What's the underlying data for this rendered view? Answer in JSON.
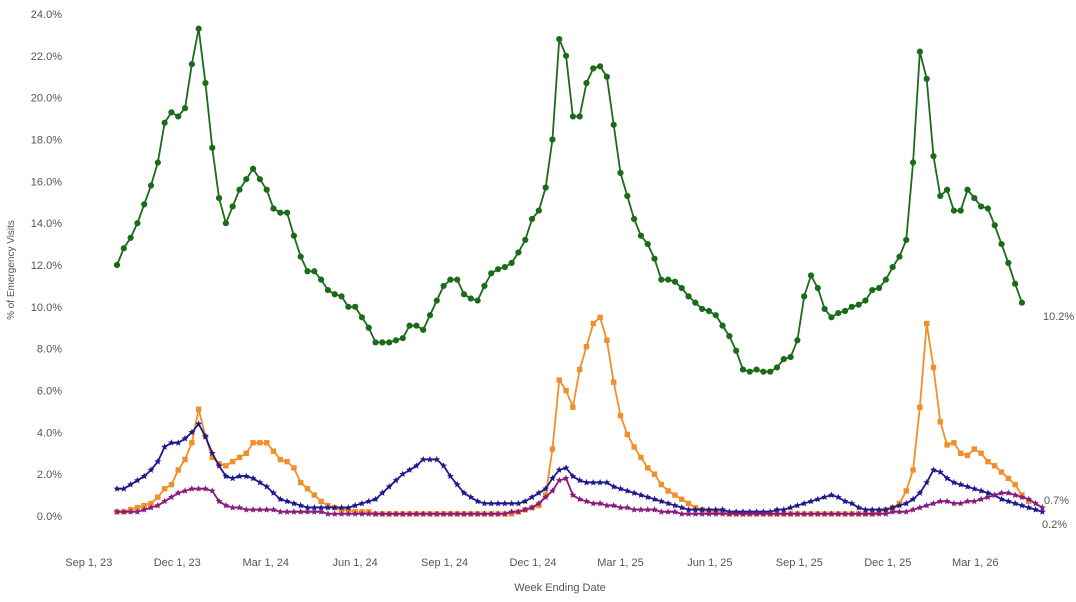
{
  "chart_data": {
    "type": "line",
    "title": "",
    "xlabel": "Week Ending Date",
    "ylabel": "% of Emergency Visits",
    "ylim": [
      0,
      24
    ],
    "y_ticks": [
      "0.0%",
      "2.0%",
      "4.0%",
      "6.0%",
      "8.0%",
      "10.0%",
      "12.0%",
      "14.0%",
      "16.0%",
      "18.0%",
      "20.0%",
      "22.0%",
      "24.0%"
    ],
    "x_ticks": [
      "Sep 1, 23",
      "Dec 1, 23",
      "Mar 1, 24",
      "Jun 1, 24",
      "Sep 1, 24",
      "Dec 1, 24",
      "Mar 1, 25",
      "Jun 1, 25",
      "Sep 1, 25",
      "Dec 1, 25",
      "Mar 1, 26"
    ],
    "x_start_week": "2023-09-30",
    "grid": false,
    "legend": "none",
    "end_labels": [
      "10.2%",
      "0.7%",
      "0.2%"
    ],
    "series": [
      {
        "color": "#1a6b1a",
        "marker": "circle",
        "values": [
          12.0,
          12.8,
          13.3,
          14.0,
          14.9,
          15.8,
          16.9,
          18.8,
          19.3,
          19.1,
          19.5,
          21.6,
          23.3,
          20.7,
          17.6,
          15.2,
          14.0,
          14.8,
          15.6,
          16.1,
          16.6,
          16.1,
          15.6,
          14.7,
          14.5,
          14.5,
          13.4,
          12.4,
          11.7,
          11.7,
          11.3,
          10.8,
          10.6,
          10.5,
          10.0,
          10.0,
          9.5,
          9.0,
          8.3,
          8.3,
          8.3,
          8.4,
          8.5,
          9.1,
          9.1,
          8.9,
          9.6,
          10.3,
          11.0,
          11.3,
          11.3,
          10.6,
          10.4,
          10.3,
          11.0,
          11.6,
          11.8,
          11.9,
          12.1,
          12.6,
          13.2,
          14.2,
          14.6,
          15.7,
          18.0,
          22.8,
          22.0,
          19.1,
          19.1,
          20.7,
          21.4,
          21.5,
          21.0,
          18.7,
          16.4,
          15.3,
          14.2,
          13.4,
          13.0,
          12.3,
          11.3,
          11.3,
          11.2,
          10.9,
          10.5,
          10.2,
          9.9,
          9.8,
          9.6,
          9.1,
          8.6,
          7.9,
          7.0,
          6.9,
          7.0,
          6.9,
          6.9,
          7.1,
          7.5,
          7.6,
          8.4,
          10.5,
          11.5,
          10.9,
          9.9,
          9.5,
          9.7,
          9.8,
          10.0,
          10.1,
          10.3,
          10.8,
          10.9,
          11.3,
          11.9,
          12.4,
          13.2,
          16.9,
          22.2,
          20.9,
          17.2,
          15.3,
          15.6,
          14.6,
          14.6,
          15.6,
          15.2,
          14.8,
          14.7,
          13.9,
          13.0,
          12.1,
          11.1,
          10.2
        ]
      },
      {
        "color": "#f28e2b",
        "marker": "square",
        "values": [
          0.2,
          0.2,
          0.3,
          0.4,
          0.5,
          0.6,
          0.9,
          1.3,
          1.5,
          2.2,
          2.7,
          3.5,
          5.1,
          3.8,
          2.8,
          2.5,
          2.4,
          2.6,
          2.8,
          3.0,
          3.5,
          3.5,
          3.5,
          3.1,
          2.7,
          2.6,
          2.3,
          1.6,
          1.3,
          1.0,
          0.7,
          0.5,
          0.4,
          0.3,
          0.3,
          0.2,
          0.2,
          0.2,
          0.1,
          0.1,
          0.1,
          0.1,
          0.1,
          0.1,
          0.1,
          0.1,
          0.1,
          0.1,
          0.1,
          0.1,
          0.1,
          0.1,
          0.1,
          0.1,
          0.1,
          0.1,
          0.1,
          0.1,
          0.1,
          0.2,
          0.3,
          0.4,
          0.5,
          1.0,
          3.2,
          6.5,
          6.0,
          5.2,
          7.0,
          8.1,
          9.2,
          9.5,
          8.4,
          6.4,
          4.8,
          3.9,
          3.3,
          2.8,
          2.3,
          2.0,
          1.5,
          1.2,
          1.0,
          0.8,
          0.6,
          0.4,
          0.3,
          0.2,
          0.2,
          0.2,
          0.1,
          0.1,
          0.1,
          0.1,
          0.1,
          0.1,
          0.1,
          0.1,
          0.1,
          0.1,
          0.1,
          0.1,
          0.1,
          0.1,
          0.1,
          0.1,
          0.1,
          0.1,
          0.1,
          0.1,
          0.1,
          0.1,
          0.2,
          0.3,
          0.4,
          0.6,
          1.2,
          2.2,
          5.2,
          9.2,
          7.1,
          4.5,
          3.4,
          3.5,
          3.0,
          2.9,
          3.2,
          3.0,
          2.6,
          2.4,
          2.1,
          1.8,
          1.5,
          1.0,
          0.7
        ]
      },
      {
        "color": "#1f1a8c",
        "marker": "star",
        "values": [
          1.3,
          1.3,
          1.5,
          1.7,
          1.9,
          2.2,
          2.6,
          3.3,
          3.5,
          3.5,
          3.7,
          4.0,
          4.4,
          3.8,
          3.0,
          2.4,
          1.9,
          1.8,
          1.9,
          1.9,
          1.8,
          1.6,
          1.4,
          1.1,
          0.8,
          0.7,
          0.6,
          0.5,
          0.4,
          0.4,
          0.4,
          0.4,
          0.4,
          0.4,
          0.4,
          0.5,
          0.6,
          0.7,
          0.8,
          1.1,
          1.4,
          1.7,
          2.0,
          2.2,
          2.4,
          2.7,
          2.7,
          2.7,
          2.4,
          1.9,
          1.5,
          1.1,
          0.9,
          0.7,
          0.6,
          0.6,
          0.6,
          0.6,
          0.6,
          0.6,
          0.7,
          0.9,
          1.1,
          1.3,
          1.8,
          2.2,
          2.3,
          1.9,
          1.7,
          1.6,
          1.6,
          1.6,
          1.6,
          1.4,
          1.3,
          1.2,
          1.1,
          1.0,
          0.9,
          0.8,
          0.7,
          0.6,
          0.5,
          0.4,
          0.3,
          0.3,
          0.3,
          0.3,
          0.3,
          0.3,
          0.2,
          0.2,
          0.2,
          0.2,
          0.2,
          0.2,
          0.2,
          0.3,
          0.3,
          0.4,
          0.5,
          0.6,
          0.7,
          0.8,
          0.9,
          1.0,
          0.9,
          0.7,
          0.6,
          0.4,
          0.3,
          0.3,
          0.3,
          0.3,
          0.4,
          0.5,
          0.6,
          0.8,
          1.1,
          1.6,
          2.2,
          2.1,
          1.8,
          1.6,
          1.5,
          1.4,
          1.3,
          1.2,
          1.1,
          1.0,
          0.8,
          0.7,
          0.6,
          0.5,
          0.4,
          0.3,
          0.2
        ]
      },
      {
        "color": "#8a1a7e",
        "marker": "star",
        "values": [
          0.2,
          0.2,
          0.2,
          0.2,
          0.3,
          0.4,
          0.5,
          0.7,
          0.9,
          1.1,
          1.2,
          1.3,
          1.3,
          1.3,
          1.2,
          0.7,
          0.5,
          0.4,
          0.4,
          0.3,
          0.3,
          0.3,
          0.3,
          0.3,
          0.2,
          0.2,
          0.2,
          0.2,
          0.2,
          0.2,
          0.2,
          0.1,
          0.1,
          0.1,
          0.1,
          0.1,
          0.1,
          0.1,
          0.1,
          0.1,
          0.1,
          0.1,
          0.1,
          0.1,
          0.1,
          0.1,
          0.1,
          0.1,
          0.1,
          0.1,
          0.1,
          0.1,
          0.1,
          0.1,
          0.1,
          0.1,
          0.1,
          0.1,
          0.2,
          0.2,
          0.3,
          0.4,
          0.6,
          0.9,
          1.2,
          1.7,
          1.8,
          1.0,
          0.8,
          0.7,
          0.6,
          0.6,
          0.5,
          0.5,
          0.4,
          0.4,
          0.3,
          0.3,
          0.3,
          0.3,
          0.2,
          0.2,
          0.2,
          0.1,
          0.1,
          0.1,
          0.1,
          0.1,
          0.1,
          0.1,
          0.1,
          0.1,
          0.1,
          0.1,
          0.1,
          0.1,
          0.1,
          0.1,
          0.1,
          0.1,
          0.1,
          0.1,
          0.1,
          0.1,
          0.1,
          0.1,
          0.1,
          0.1,
          0.1,
          0.1,
          0.1,
          0.1,
          0.1,
          0.1,
          0.2,
          0.2,
          0.2,
          0.3,
          0.4,
          0.5,
          0.6,
          0.7,
          0.7,
          0.6,
          0.6,
          0.7,
          0.7,
          0.8,
          0.9,
          1.0,
          1.1,
          1.1,
          1.0,
          0.9,
          0.8,
          0.6,
          0.4
        ]
      }
    ]
  }
}
